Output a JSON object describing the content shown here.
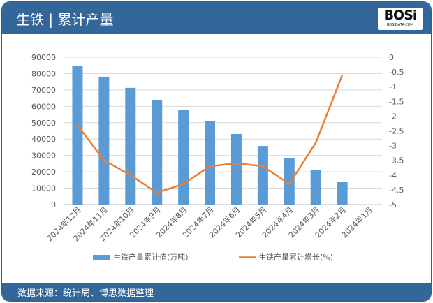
{
  "header": {
    "title": "生铁 | 累计产量",
    "logo_text": "BOSi",
    "logo_sub": "BOSIDATA.COM"
  },
  "footer": {
    "source": "数据来源：统计局、博思数据整理"
  },
  "colors": {
    "bar": "#5b9bd5",
    "line": "#ed7d31",
    "header": "#336699"
  },
  "chart_data": {
    "type": "bar+line",
    "categories": [
      "2024年12月",
      "2024年11月",
      "2024年10月",
      "2024年9月",
      "2024年8月",
      "2024年7月",
      "2024年6月",
      "2024年5月",
      "2024年4月",
      "2024年3月",
      "2024年2月",
      "2024年1月"
    ],
    "series": [
      {
        "name": "生铁产量累计值(万吨)",
        "type": "bar",
        "axis": "left",
        "values": [
          84900,
          78100,
          71300,
          64000,
          57600,
          50800,
          43100,
          35800,
          28200,
          20900,
          13700,
          null
        ]
      },
      {
        "name": "生铁产量累计增长(%)",
        "type": "line",
        "axis": "right",
        "values": [
          -2.3,
          -3.5,
          -4.0,
          -4.6,
          -4.3,
          -3.7,
          -3.6,
          -3.7,
          -4.3,
          -2.9,
          -0.6,
          null
        ]
      }
    ],
    "y_left": {
      "ylim": [
        0,
        90000
      ],
      "ticks": [
        "0",
        "10000",
        "20000",
        "30000",
        "40000",
        "50000",
        "60000",
        "70000",
        "80000",
        "90000"
      ]
    },
    "y_right": {
      "ylim": [
        -5,
        0
      ],
      "ticks": [
        "-5",
        "-4.5",
        "-4",
        "-3.5",
        "-3",
        "-2.5",
        "-2",
        "-1.5",
        "-1",
        "-0.5",
        "0"
      ]
    },
    "grid": true,
    "legend": "bottom"
  }
}
